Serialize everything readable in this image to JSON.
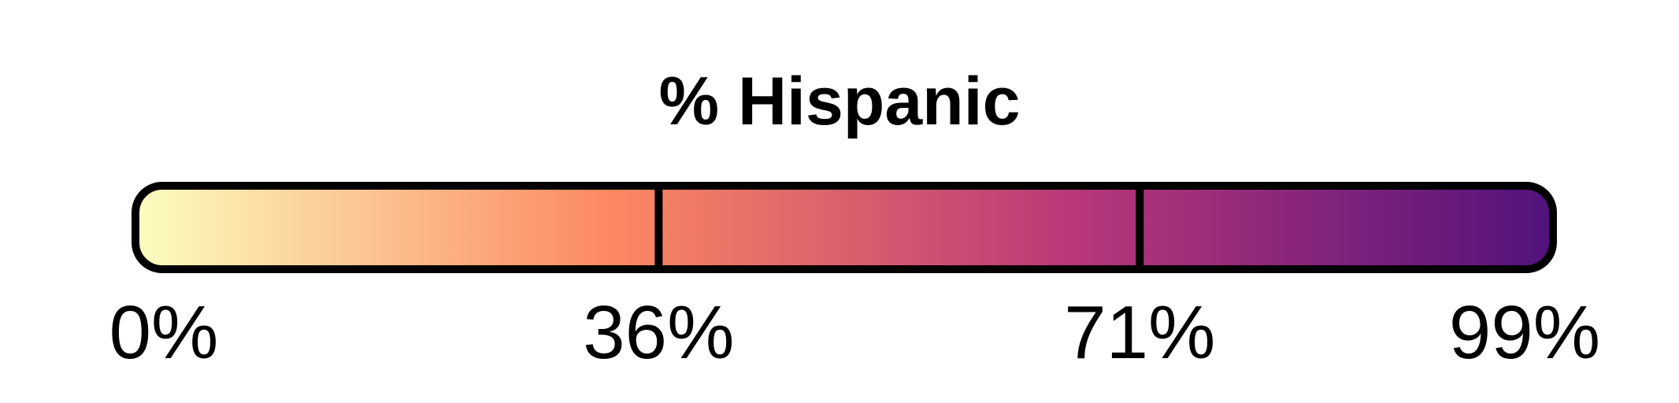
{
  "chart_data": {
    "type": "legend-colorbar",
    "title": "% Hispanic",
    "range": [
      0,
      99
    ],
    "ticks": [
      {
        "value": 0,
        "label": "0%"
      },
      {
        "value": 36,
        "label": "36%"
      },
      {
        "value": 71,
        "label": "71%"
      },
      {
        "value": 99,
        "label": "99%"
      }
    ],
    "breaks": [
      36,
      71
    ],
    "colormap": [
      "#fcfdbf",
      "#fc8961",
      "#b73779",
      "#51127c"
    ],
    "outline_color": "#000000"
  }
}
